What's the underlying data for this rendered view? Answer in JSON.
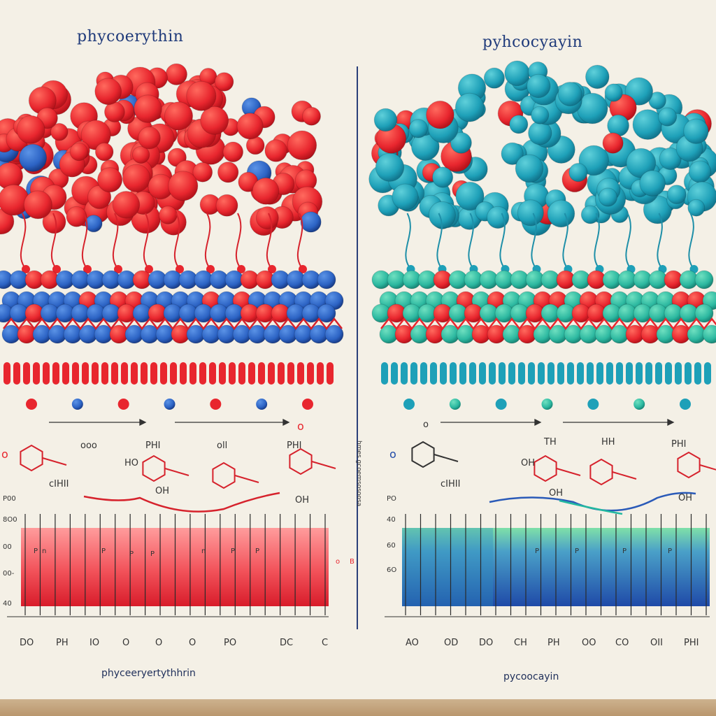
{
  "left": {
    "title": "phycoerythin",
    "caption": "phyceeryertythhrin",
    "side_mark": "o",
    "arrow_right_mark": "o",
    "molecules": [
      "ooo",
      "PHI",
      "oll",
      "PHI"
    ],
    "molecule_subs": [
      "cIHII",
      "HO",
      "OH",
      "OH"
    ],
    "chart_y_ticks": [
      "P00",
      "8O0",
      "00",
      "00-",
      "40"
    ],
    "chart_in_labels": [
      "P",
      "n",
      "P",
      "P",
      "P",
      "n",
      "P",
      "P"
    ],
    "chart_side": [
      "o",
      "B"
    ],
    "x_ticks": [
      "DO",
      "PH",
      "IO",
      "O",
      "O",
      "O",
      "PO",
      "DC",
      "C"
    ],
    "colors": {
      "main": "#e8262e",
      "secondary": "#2c63c4"
    }
  },
  "right": {
    "title": "pyhcocyayin",
    "caption": "pycoocayin",
    "side_mark": "o",
    "molecules": [
      "o",
      "TH",
      "HH",
      "PHI"
    ],
    "molecule_subs": [
      "cIHII",
      "OH",
      "OH",
      "OH"
    ],
    "vertical_note": "hmes gcoemsosoosa",
    "chart_y_ticks": [
      "PO",
      "40",
      "60",
      "6O"
    ],
    "chart_in_labels": [
      "P",
      "P",
      "P",
      "P"
    ],
    "x_ticks": [
      "AO",
      "OD",
      "DO",
      "CH",
      "PH",
      "OO",
      "CO",
      "OII",
      "PHI"
    ],
    "colors": {
      "main": "#1ea0b8",
      "secondary": "#e8262e"
    }
  }
}
